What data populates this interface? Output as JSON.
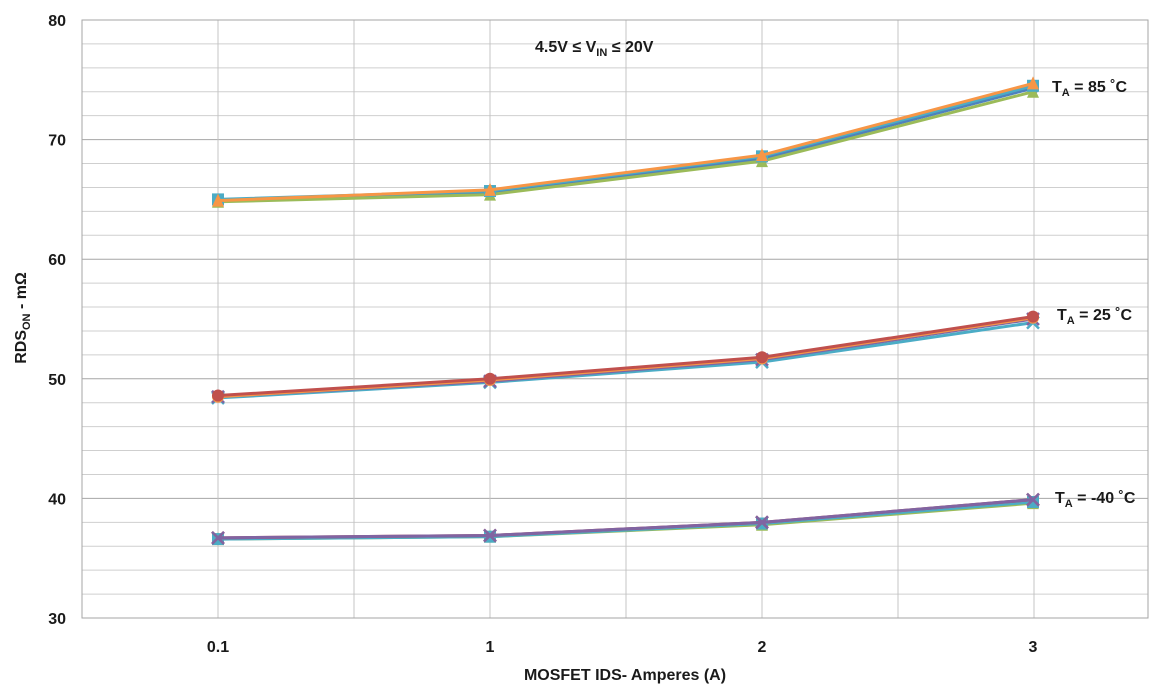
{
  "chart_data": {
    "type": "line",
    "categories": [
      "0.1",
      "1",
      "2",
      "3"
    ],
    "xlabel": "MOSFET IDS- Amperes (A)",
    "ylabel": {
      "main": "RDS",
      "sub": "ON",
      "rest": " - mΩ"
    },
    "ylim": [
      30,
      80
    ],
    "yticks": [
      30,
      40,
      50,
      60,
      70,
      80
    ],
    "grid": true,
    "condition": {
      "pre": "4.5V ≤ V",
      "sub": "IN",
      "post": " ≤ 20V"
    },
    "groups": [
      {
        "label": {
          "pre": "T",
          "sub": "A",
          "post": " = 85 ˚C"
        },
        "series": [
          {
            "color": "#4f81bd",
            "marker": "circle",
            "values": [
              64.9,
              65.6,
              68.4,
              74.3
            ]
          },
          {
            "color": "#9bbb59",
            "marker": "triangle",
            "values": [
              64.8,
              65.4,
              68.2,
              74.0
            ]
          },
          {
            "color": "#4bacc6",
            "marker": "square",
            "values": [
              65.0,
              65.7,
              68.6,
              74.5
            ]
          },
          {
            "color": "#f79646",
            "marker": "triangle",
            "values": [
              64.9,
              65.8,
              68.7,
              74.7
            ]
          }
        ]
      },
      {
        "label": {
          "pre": "T",
          "sub": "A",
          "post": " = 25 ˚C"
        },
        "series": [
          {
            "color": "#4bacc6",
            "marker": "x",
            "values": [
              48.4,
              49.7,
              51.4,
              54.7
            ]
          },
          {
            "color": "#8064a2",
            "marker": "x",
            "values": [
              48.5,
              49.8,
              51.6,
              55.0
            ]
          },
          {
            "color": "#f79646",
            "marker": "circle",
            "values": [
              48.5,
              49.9,
              51.7,
              55.1
            ]
          },
          {
            "color": "#c0504d",
            "marker": "circle",
            "values": [
              48.6,
              50.0,
              51.8,
              55.2
            ]
          }
        ]
      },
      {
        "label": {
          "pre": "T",
          "sub": "A",
          "post": " = -40 ˚C"
        },
        "series": [
          {
            "color": "#9bbb59",
            "marker": "triangle",
            "values": [
              36.6,
              36.8,
              37.8,
              39.6
            ]
          },
          {
            "color": "#4bacc6",
            "marker": "square",
            "values": [
              36.6,
              36.8,
              37.9,
              39.7
            ]
          },
          {
            "color": "#c0504d",
            "marker": "x",
            "values": [
              36.7,
              36.9,
              38.0,
              39.9
            ]
          },
          {
            "color": "#8064a2",
            "marker": "x",
            "values": [
              36.7,
              36.9,
              38.0,
              39.9
            ]
          }
        ]
      }
    ]
  }
}
